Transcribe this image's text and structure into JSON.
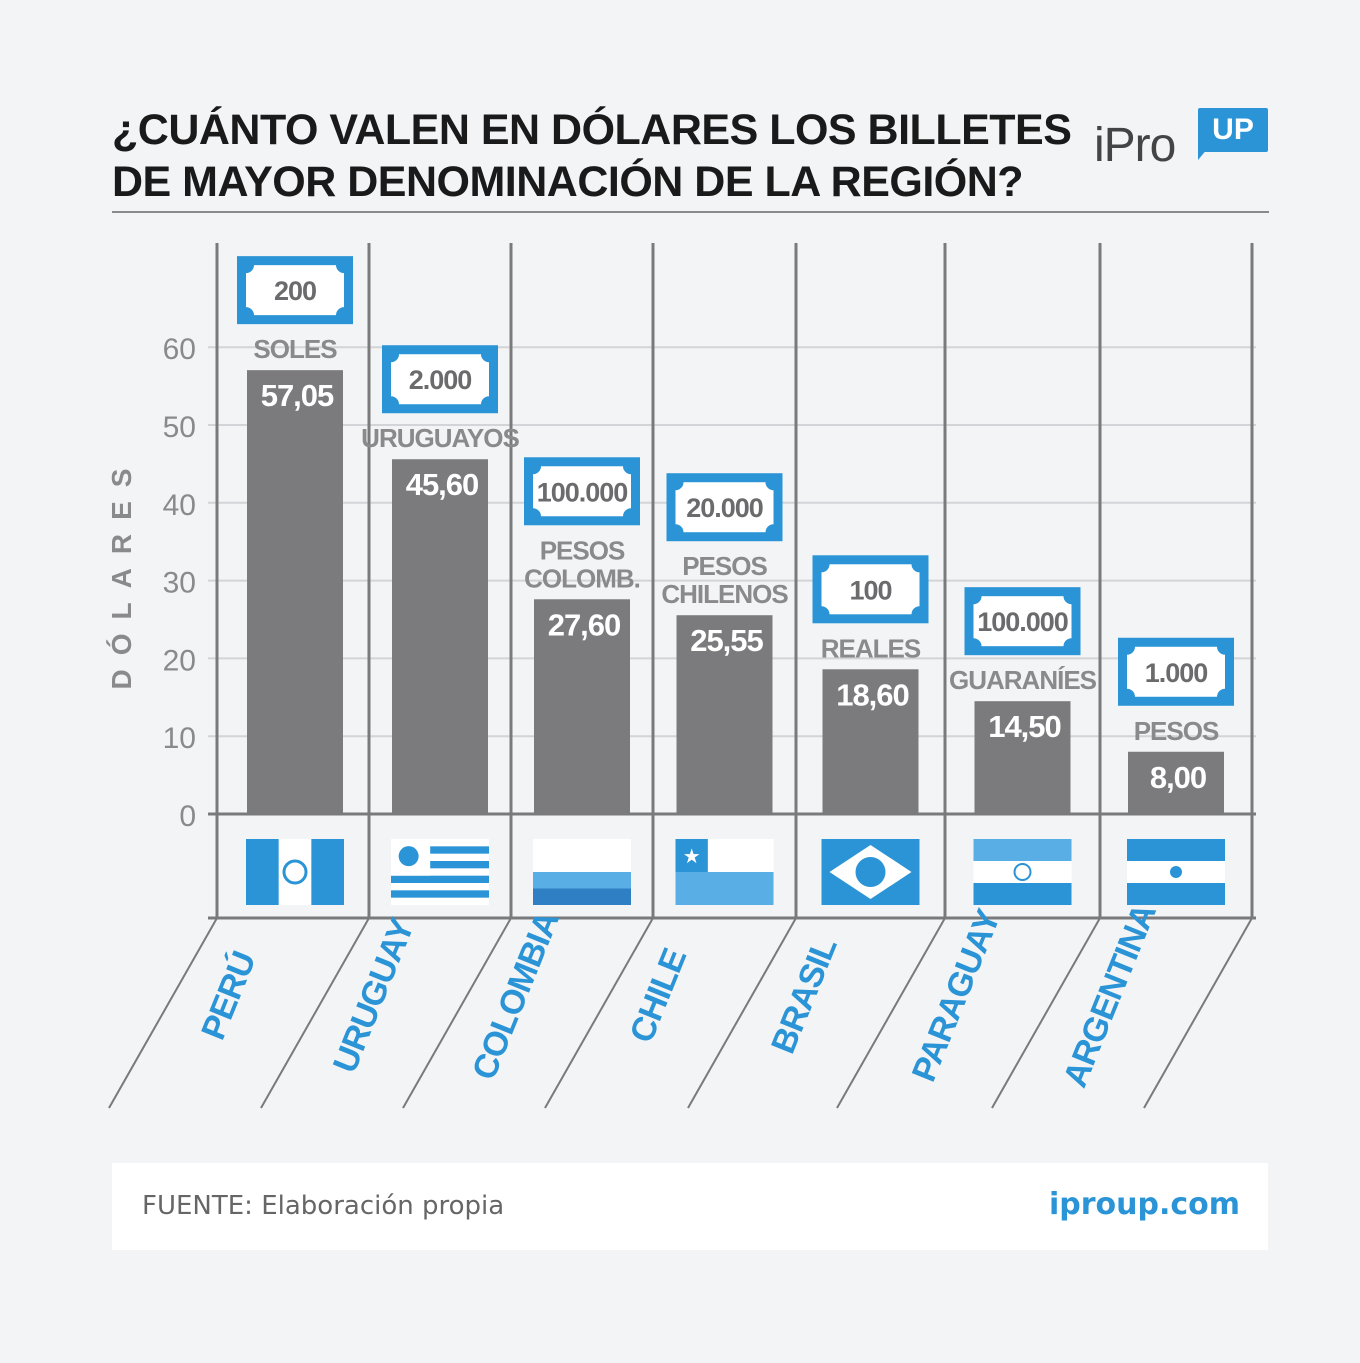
{
  "colors": {
    "accent": "#2a94d6",
    "bar": "#7b7b7d",
    "grid": "#d2d4d8",
    "frame": "#7a7a7c",
    "label": "#8a8a8c",
    "background": "#f3f4f6"
  },
  "header": {
    "title_line1": "¿CUÁNTO VALEN EN DÓLARES LOS BILLETES",
    "title_line2": "DE MAYOR DENOMINACIÓN DE LA REGIÓN?",
    "logo_text": "iPro",
    "logo_badge": "UP"
  },
  "chart_data": {
    "type": "bar",
    "ylabel": "DÓLARES",
    "ylim": [
      0,
      70
    ],
    "yticks": [
      "0",
      "10",
      "20",
      "30",
      "40",
      "50",
      "60"
    ],
    "grid": true,
    "categories": [
      "PERÚ",
      "URUGUAY",
      "COLOMBIA",
      "CHILE",
      "BRASIL",
      "PARAGUAY",
      "ARGENTINA"
    ],
    "values": [
      57.05,
      45.6,
      27.6,
      25.55,
      18.6,
      14.5,
      8.0
    ],
    "value_labels": [
      "57,05",
      "45,60",
      "27,60",
      "25,55",
      "18,60",
      "14,50",
      "8,00"
    ],
    "banknotes": [
      "200",
      "2.000",
      "100.000",
      "20.000",
      "100",
      "100.000",
      "1.000"
    ],
    "currencies": [
      [
        "SOLES"
      ],
      [
        "URUGUAYOS"
      ],
      [
        "PESOS",
        "COLOMB."
      ],
      [
        "PESOS",
        "CHILENOS"
      ],
      [
        "REALES"
      ],
      [
        "GUARANÍES"
      ],
      [
        "PESOS"
      ]
    ],
    "flags": [
      "peru-flag-icon",
      "uruguay-flag-icon",
      "colombia-flag-icon",
      "chile-flag-icon",
      "brazil-flag-icon",
      "paraguay-flag-icon",
      "argentina-flag-icon"
    ]
  },
  "footer": {
    "source": "FUENTE: Elaboración propia",
    "url": "iproup.com"
  }
}
